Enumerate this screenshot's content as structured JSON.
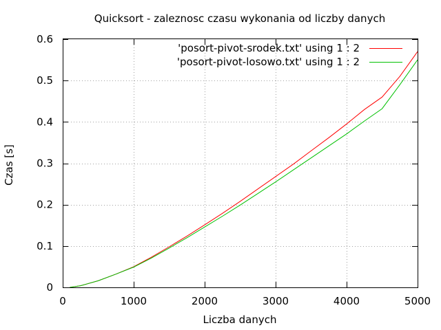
{
  "chart_data": {
    "type": "line",
    "title": "Quicksort - zaleznosc czasu wykonania od liczby danych",
    "xlabel": "Liczba danych",
    "ylabel": "Czas [s]",
    "xlim": [
      0,
      5000
    ],
    "ylim": [
      0,
      0.6
    ],
    "x_ticks": [
      0,
      1000,
      2000,
      3000,
      4000,
      5000
    ],
    "x_tick_labels": [
      "0",
      "1000",
      "2000",
      "3000",
      "4000",
      "5000"
    ],
    "y_ticks": [
      0,
      0.1,
      0.2,
      0.3,
      0.4,
      0.5,
      0.6
    ],
    "y_tick_labels": [
      "0",
      "0.1",
      "0.2",
      "0.3",
      "0.4",
      "0.5",
      "0.6"
    ],
    "grid": true,
    "legend_position": "top-right",
    "series": [
      {
        "name": "'posort-pivot-srodek.txt' using 1 : 2",
        "color": "#ff0000",
        "x": [
          100,
          250,
          500,
          750,
          1000,
          1250,
          1500,
          1750,
          2000,
          2250,
          2500,
          2750,
          3000,
          3250,
          3500,
          3750,
          4000,
          4250,
          4500,
          4750,
          5000
        ],
        "y": [
          0.0,
          0.004,
          0.016,
          0.032,
          0.05,
          0.073,
          0.098,
          0.124,
          0.151,
          0.179,
          0.208,
          0.238,
          0.268,
          0.298,
          0.33,
          0.362,
          0.395,
          0.43,
          0.46,
          0.51,
          0.57
        ]
      },
      {
        "name": "'posort-pivot-losowo.txt' using 1 : 2",
        "color": "#00c000",
        "x": [
          100,
          250,
          500,
          750,
          1000,
          1250,
          1500,
          1750,
          2000,
          2250,
          2500,
          2750,
          3000,
          3250,
          3500,
          3750,
          4000,
          4250,
          4500,
          4750,
          5000
        ],
        "y": [
          0.0,
          0.004,
          0.016,
          0.032,
          0.049,
          0.071,
          0.095,
          0.12,
          0.146,
          0.172,
          0.199,
          0.227,
          0.255,
          0.284,
          0.313,
          0.342,
          0.371,
          0.402,
          0.432,
          0.49,
          0.55
        ]
      }
    ]
  }
}
